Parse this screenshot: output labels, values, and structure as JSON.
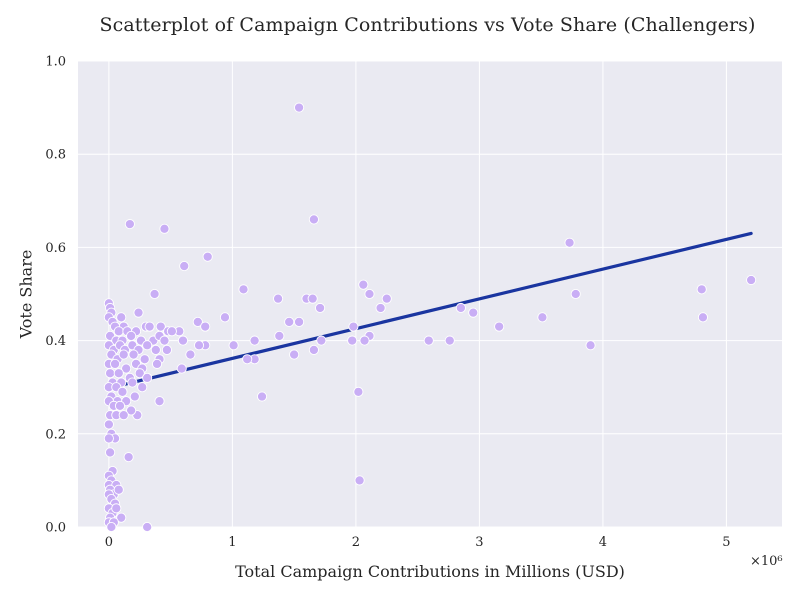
{
  "chart_data": {
    "type": "scatter",
    "title": "Scatterplot of Campaign Contributions vs Vote Share (Challengers)",
    "xlabel": "Total Campaign Contributions in Millions (USD)",
    "ylabel": "Vote Share",
    "x_multiplier_label": "×10⁶",
    "xlim": [
      -0.25,
      5.45
    ],
    "ylim": [
      0,
      1.0
    ],
    "x_ticks": [
      0,
      1,
      2,
      3,
      4,
      5
    ],
    "x_tick_labels": [
      "0",
      "1",
      "2",
      "3",
      "4",
      "5"
    ],
    "y_ticks": [
      0.0,
      0.2,
      0.4,
      0.6,
      0.8,
      1.0
    ],
    "y_tick_labels": [
      "0.0",
      "0.2",
      "0.4",
      "0.6",
      "0.8",
      "1.0"
    ],
    "grid": true,
    "colors": {
      "background": "#eaeaf2",
      "points": "#c9aef5",
      "point_edge": "#ffffff",
      "regression": "#1a35a0"
    },
    "regression_line": {
      "x": [
        0,
        5.2
      ],
      "y": [
        0.298,
        0.63
      ]
    },
    "points": [
      [
        1.54,
        0.9
      ],
      [
        0.45,
        0.64
      ],
      [
        0.17,
        0.65
      ],
      [
        1.66,
        0.66
      ],
      [
        0.61,
        0.56
      ],
      [
        0.8,
        0.58
      ],
      [
        3.73,
        0.61
      ],
      [
        1.09,
        0.51
      ],
      [
        2.06,
        0.52
      ],
      [
        5.2,
        0.53
      ],
      [
        4.8,
        0.51
      ],
      [
        2.11,
        0.5
      ],
      [
        2.25,
        0.49
      ],
      [
        1.37,
        0.49
      ],
      [
        1.6,
        0.49
      ],
      [
        1.65,
        0.49
      ],
      [
        3.78,
        0.5
      ],
      [
        0.37,
        0.5
      ],
      [
        1.71,
        0.47
      ],
      [
        2.2,
        0.47
      ],
      [
        2.85,
        0.47
      ],
      [
        2.95,
        0.46
      ],
      [
        0.94,
        0.45
      ],
      [
        3.51,
        0.45
      ],
      [
        4.81,
        0.45
      ],
      [
        1.54,
        0.44
      ],
      [
        1.46,
        0.44
      ],
      [
        0.72,
        0.44
      ],
      [
        0.78,
        0.43
      ],
      [
        3.16,
        0.43
      ],
      [
        1.98,
        0.43
      ],
      [
        0.57,
        0.42
      ],
      [
        1.38,
        0.41
      ],
      [
        2.11,
        0.41
      ],
      [
        1.72,
        0.4
      ],
      [
        1.97,
        0.4
      ],
      [
        2.07,
        0.4
      ],
      [
        2.59,
        0.4
      ],
      [
        2.76,
        0.4
      ],
      [
        1.18,
        0.4
      ],
      [
        1.01,
        0.39
      ],
      [
        3.9,
        0.39
      ],
      [
        0.78,
        0.39
      ],
      [
        0.73,
        0.39
      ],
      [
        0.6,
        0.4
      ],
      [
        1.66,
        0.38
      ],
      [
        1.18,
        0.36
      ],
      [
        1.12,
        0.36
      ],
      [
        1.5,
        0.37
      ],
      [
        0.66,
        0.37
      ],
      [
        0.59,
        0.34
      ],
      [
        1.24,
        0.28
      ],
      [
        2.02,
        0.29
      ],
      [
        2.03,
        0.1
      ],
      [
        0.41,
        0.27
      ],
      [
        0.23,
        0.24
      ],
      [
        0.31,
        0.0
      ],
      [
        0.24,
        0.46
      ],
      [
        0.16,
        0.15
      ],
      [
        0.0,
        0.48
      ],
      [
        0.01,
        0.47
      ],
      [
        0.02,
        0.46
      ],
      [
        0.0,
        0.45
      ],
      [
        0.03,
        0.44
      ],
      [
        0.1,
        0.45
      ],
      [
        0.12,
        0.43
      ],
      [
        0.05,
        0.43
      ],
      [
        0.08,
        0.42
      ],
      [
        0.15,
        0.42
      ],
      [
        0.22,
        0.42
      ],
      [
        0.3,
        0.43
      ],
      [
        0.33,
        0.43
      ],
      [
        0.42,
        0.43
      ],
      [
        0.48,
        0.42
      ],
      [
        0.51,
        0.42
      ],
      [
        0.01,
        0.41
      ],
      [
        0.06,
        0.4
      ],
      [
        0.11,
        0.4
      ],
      [
        0.18,
        0.41
      ],
      [
        0.26,
        0.4
      ],
      [
        0.36,
        0.4
      ],
      [
        0.41,
        0.41
      ],
      [
        0.45,
        0.4
      ],
      [
        0.0,
        0.39
      ],
      [
        0.04,
        0.38
      ],
      [
        0.09,
        0.39
      ],
      [
        0.13,
        0.38
      ],
      [
        0.19,
        0.39
      ],
      [
        0.24,
        0.38
      ],
      [
        0.31,
        0.39
      ],
      [
        0.38,
        0.38
      ],
      [
        0.47,
        0.38
      ],
      [
        0.02,
        0.37
      ],
      [
        0.07,
        0.36
      ],
      [
        0.12,
        0.37
      ],
      [
        0.2,
        0.37
      ],
      [
        0.29,
        0.36
      ],
      [
        0.41,
        0.36
      ],
      [
        0.39,
        0.35
      ],
      [
        0.0,
        0.35
      ],
      [
        0.05,
        0.35
      ],
      [
        0.14,
        0.34
      ],
      [
        0.22,
        0.35
      ],
      [
        0.27,
        0.34
      ],
      [
        0.01,
        0.33
      ],
      [
        0.08,
        0.33
      ],
      [
        0.17,
        0.32
      ],
      [
        0.25,
        0.33
      ],
      [
        0.31,
        0.32
      ],
      [
        0.03,
        0.31
      ],
      [
        0.1,
        0.31
      ],
      [
        0.19,
        0.31
      ],
      [
        0.0,
        0.3
      ],
      [
        0.06,
        0.3
      ],
      [
        0.11,
        0.29
      ],
      [
        0.27,
        0.3
      ],
      [
        0.02,
        0.28
      ],
      [
        0.07,
        0.27
      ],
      [
        0.14,
        0.27
      ],
      [
        0.21,
        0.28
      ],
      [
        0.0,
        0.27
      ],
      [
        0.04,
        0.26
      ],
      [
        0.09,
        0.26
      ],
      [
        0.18,
        0.25
      ],
      [
        0.01,
        0.24
      ],
      [
        0.06,
        0.24
      ],
      [
        0.12,
        0.24
      ],
      [
        0.0,
        0.22
      ],
      [
        0.02,
        0.2
      ],
      [
        0.05,
        0.19
      ],
      [
        0.0,
        0.19
      ],
      [
        0.01,
        0.16
      ],
      [
        0.03,
        0.12
      ],
      [
        0.0,
        0.11
      ],
      [
        0.02,
        0.1
      ],
      [
        0.0,
        0.09
      ],
      [
        0.06,
        0.09
      ],
      [
        0.01,
        0.08
      ],
      [
        0.04,
        0.07
      ],
      [
        0.08,
        0.08
      ],
      [
        0.0,
        0.07
      ],
      [
        0.02,
        0.06
      ],
      [
        0.05,
        0.05
      ],
      [
        0.0,
        0.04
      ],
      [
        0.03,
        0.03
      ],
      [
        0.01,
        0.02
      ],
      [
        0.1,
        0.02
      ],
      [
        0.0,
        0.01
      ],
      [
        0.04,
        0.01
      ],
      [
        0.02,
        0.0
      ],
      [
        0.06,
        0.04
      ]
    ]
  }
}
